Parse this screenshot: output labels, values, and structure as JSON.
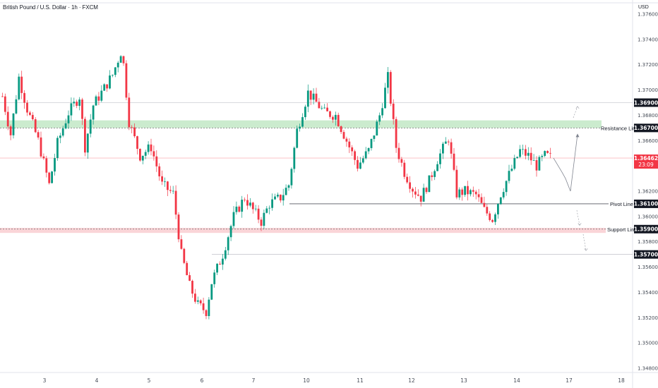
{
  "header": {
    "title": "British Pound / U.S. Dollar · 1h · FXCM",
    "currency": "USD"
  },
  "colors": {
    "up": "#089981",
    "down": "#f23645",
    "resistance_zone": "#b9e4bd",
    "support_zone": "#f8c7cb",
    "price_tag": "#f23645",
    "level_tag": "#131722"
  },
  "current_price": {
    "value": "1.36462",
    "countdown": "23:09"
  },
  "levels": [
    {
      "id": "resistance",
      "price": 1.367,
      "label": "Resistance Line",
      "tag": "1.36700",
      "zone": [
        1.367,
        1.3676
      ]
    },
    {
      "id": "pivot",
      "price": 1.361,
      "label": "Pivot Line",
      "tag": "1.36100"
    },
    {
      "id": "support",
      "price": 1.359,
      "label": "Support Line",
      "tag": "1.35900",
      "zone": [
        1.3587,
        1.3591
      ]
    },
    {
      "id": "upper",
      "price": 1.369,
      "label": "",
      "tag": "1.36900"
    },
    {
      "id": "lower",
      "price": 1.357,
      "label": "",
      "tag": "1.35700"
    }
  ],
  "chart_data": {
    "type": "candlestick",
    "title": "British Pound / U.S. Dollar · 1h · FXCM",
    "ylabel": "USD",
    "ylim": [
      1.3475,
      1.3775
    ],
    "y_ticks": [
      "1.34800",
      "1.35000",
      "1.35200",
      "1.35400",
      "1.35600",
      "1.35800",
      "1.36000",
      "1.36200",
      "1.36400",
      "1.36600",
      "1.36800",
      "1.37000",
      "1.37200",
      "1.37400",
      "1.37600"
    ],
    "x_ticks": [
      "3",
      "4",
      "5",
      "6",
      "7",
      "10",
      "11",
      "12",
      "13",
      "14",
      "17",
      "18"
    ],
    "grid": false,
    "waypoints": [
      [
        0,
        1.3695
      ],
      [
        3,
        1.3665
      ],
      [
        6,
        1.371
      ],
      [
        9,
        1.3685
      ],
      [
        13,
        1.366
      ],
      [
        17,
        1.3625
      ],
      [
        20,
        1.3658
      ],
      [
        24,
        1.3682
      ],
      [
        28,
        1.3695
      ],
      [
        30,
        1.3655
      ],
      [
        33,
        1.3688
      ],
      [
        36,
        1.3698
      ],
      [
        40,
        1.3712
      ],
      [
        43,
        1.373
      ],
      [
        44,
        1.372
      ],
      [
        46,
        1.3675
      ],
      [
        50,
        1.3648
      ],
      [
        54,
        1.3655
      ],
      [
        58,
        1.3625
      ],
      [
        62,
        1.3618
      ],
      [
        65,
        1.357
      ],
      [
        68,
        1.3545
      ],
      [
        71,
        1.353
      ],
      [
        74,
        1.3525
      ],
      [
        76,
        1.3548
      ],
      [
        80,
        1.357
      ],
      [
        84,
        1.36
      ],
      [
        88,
        1.3615
      ],
      [
        91,
        1.3605
      ],
      [
        94,
        1.3596
      ],
      [
        97,
        1.361
      ],
      [
        101,
        1.3615
      ],
      [
        104,
        1.3625
      ],
      [
        107,
        1.3668
      ],
      [
        111,
        1.3698
      ],
      [
        114,
        1.369
      ],
      [
        117,
        1.3682
      ],
      [
        121,
        1.368
      ],
      [
        125,
        1.366
      ],
      [
        129,
        1.364
      ],
      [
        133,
        1.3652
      ],
      [
        137,
        1.368
      ],
      [
        140,
        1.371
      ],
      [
        143,
        1.3655
      ],
      [
        146,
        1.3635
      ],
      [
        149,
        1.3622
      ],
      [
        152,
        1.3615
      ],
      [
        155,
        1.3628
      ],
      [
        158,
        1.3645
      ],
      [
        162,
        1.3662
      ],
      [
        165,
        1.3618
      ],
      [
        168,
        1.362
      ],
      [
        172,
        1.3617
      ],
      [
        175,
        1.3605
      ],
      [
        178,
        1.3598
      ],
      [
        181,
        1.3618
      ],
      [
        184,
        1.3633
      ],
      [
        188,
        1.3652
      ],
      [
        191,
        1.3648
      ],
      [
        194,
        1.364
      ],
      [
        197,
        1.3648
      ],
      [
        199,
        1.3647
      ]
    ],
    "projection": [
      [
        1.36462
      ],
      [
        1.3635
      ],
      [
        1.363
      ],
      [
        1.362
      ],
      [
        1.3665
      ]
    ],
    "annotations": [
      "Resistance Line",
      "Pivot Line",
      "Support Line"
    ]
  }
}
